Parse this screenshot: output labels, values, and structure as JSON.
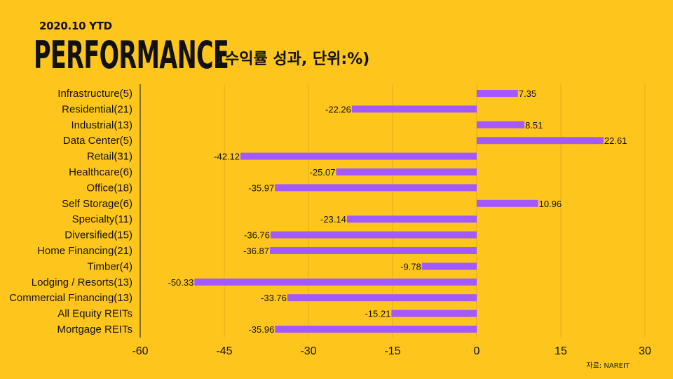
{
  "header": {
    "subtitle": "2020.10 YTD",
    "title": "PERFORMANCE",
    "unit_note": "(수익률 성과, 단위:%)"
  },
  "footer": {
    "source": "자료: NAREIT"
  },
  "colors": {
    "background": "#FEC61D",
    "bar": "#A259FF",
    "gridline": "#E0B01A",
    "text": "#111111"
  },
  "chart_data": {
    "type": "bar",
    "orientation": "horizontal",
    "title": "PERFORMANCE",
    "xlabel": "",
    "ylabel": "",
    "xlim": [
      -60,
      30
    ],
    "xticks": [
      -60,
      -45,
      -30,
      -15,
      0,
      15,
      30
    ],
    "grid": true,
    "categories": [
      "Infrastructure(5)",
      "Residential(21)",
      "Industrial(13)",
      "Data Center(5)",
      "Retail(31)",
      "Healthcare(6)",
      "Office(18)",
      "Self Storage(6)",
      "Specialty(11)",
      "Diversified(15)",
      "Home Financing(21)",
      "Timber(4)",
      "Lodging / Resorts(13)",
      "Commercial Financing(13)",
      "All Equity REITs",
      "Mortgage REITs"
    ],
    "values": [
      7.35,
      -22.26,
      8.51,
      22.61,
      -42.12,
      -25.07,
      -35.97,
      10.96,
      -23.14,
      -36.76,
      -36.87,
      -9.78,
      -50.33,
      -33.76,
      -15.21,
      -35.96
    ],
    "value_labels": [
      "7.35",
      "-22.26",
      "8.51",
      "22.61",
      "-42.12",
      "-25.07",
      "-35.97",
      "10.96",
      "-23.14",
      "-36.76",
      "-36.87",
      "-9.78",
      "-50.33",
      "-33.76",
      "-15.21",
      "-35.96"
    ]
  }
}
